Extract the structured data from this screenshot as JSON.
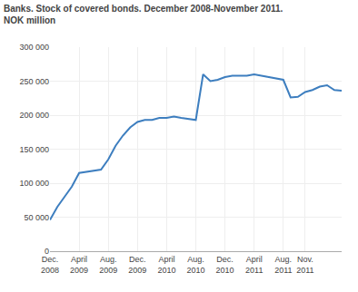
{
  "chart_data": {
    "type": "line",
    "title": "Banks. Stock of covered bonds. December 2008-November 2011.",
    "subtitle": "NOK million",
    "categories": [
      "Dec.\n2008",
      null,
      null,
      null,
      "April\n2009",
      null,
      null,
      null,
      "Aug.\n2009",
      null,
      null,
      null,
      "Dec.\n2009",
      null,
      null,
      null,
      "April\n2010",
      null,
      null,
      null,
      "Aug.\n2010",
      null,
      null,
      null,
      "Dec.\n2010",
      null,
      null,
      null,
      "April\n2011",
      null,
      null,
      null,
      "Aug.\n2011",
      null,
      null,
      "Nov.\n2011",
      null,
      null,
      null,
      null,
      null
    ],
    "values": [
      46000,
      65000,
      80000,
      95000,
      115000,
      117000,
      118000,
      120000,
      135000,
      155000,
      170000,
      182000,
      190000,
      193000,
      193000,
      196000,
      196000,
      198000,
      196000,
      195000,
      193000,
      260000,
      250000,
      252000,
      256000,
      258000,
      258000,
      258000,
      260000,
      258000,
      256000,
      254000,
      252000,
      226000,
      227000,
      234000,
      237000,
      242000,
      244000,
      237000,
      236000
    ],
    "color": "#3d7ebf",
    "ylim": [
      0,
      300000
    ],
    "yticks": [
      0,
      {
        "value": 50000,
        "label": "50 000"
      },
      {
        "value": 100000,
        "label": "100 000"
      },
      {
        "value": 150000,
        "label": "150 000"
      },
      {
        "value": 200000,
        "label": "200 000"
      },
      {
        "value": 250000,
        "label": "250 000"
      },
      {
        "value": 300000,
        "label": "300 000"
      }
    ],
    "grid": true
  }
}
